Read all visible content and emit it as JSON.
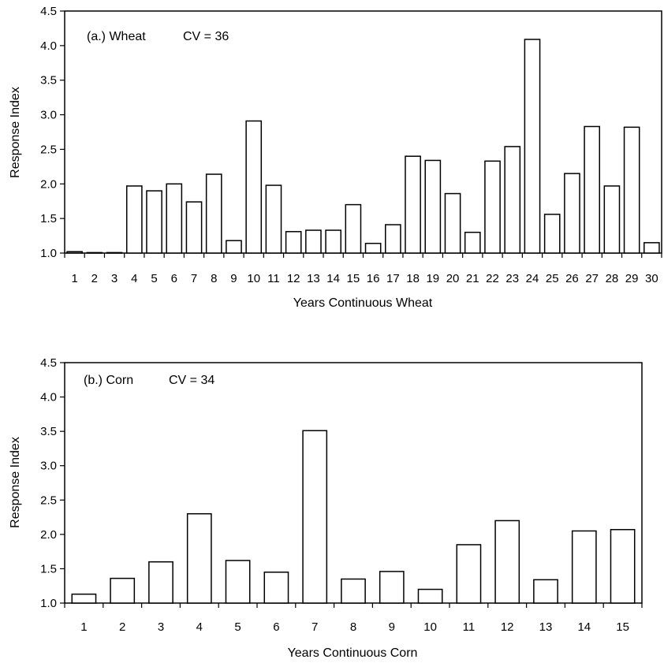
{
  "chart_data": [
    {
      "type": "bar",
      "panel_label": "(a.) Wheat",
      "cv_label": "CV = 36",
      "xlabel": "Years Continuous Wheat",
      "ylabel": "Response Index",
      "ylim": [
        1.0,
        4.5
      ],
      "yticks": [
        "1.0",
        "1.5",
        "2.0",
        "2.5",
        "3.0",
        "3.5",
        "4.0",
        "4.5"
      ],
      "grid": false,
      "categories": [
        "1",
        "2",
        "3",
        "4",
        "5",
        "6",
        "7",
        "8",
        "9",
        "10",
        "11",
        "12",
        "13",
        "14",
        "15",
        "16",
        "17",
        "18",
        "19",
        "20",
        "21",
        "22",
        "23",
        "24",
        "25",
        "26",
        "27",
        "28",
        "29",
        "30"
      ],
      "values": [
        1.02,
        1.0,
        1.0,
        1.97,
        1.9,
        2.0,
        1.74,
        2.14,
        1.18,
        2.91,
        1.98,
        1.31,
        1.33,
        1.33,
        1.7,
        1.14,
        1.41,
        2.4,
        2.34,
        1.86,
        1.3,
        2.33,
        2.54,
        4.09,
        1.56,
        2.15,
        2.83,
        1.97,
        2.82,
        1.15
      ]
    },
    {
      "type": "bar",
      "panel_label": "(b.) Corn",
      "cv_label": "CV = 34",
      "xlabel": "Years Continuous Corn",
      "ylabel": "Response Index",
      "ylim": [
        1.0,
        4.5
      ],
      "yticks": [
        "1.0",
        "1.5",
        "2.0",
        "2.5",
        "3.0",
        "3.5",
        "4.0",
        "4.5"
      ],
      "grid": false,
      "categories": [
        "1",
        "2",
        "3",
        "4",
        "5",
        "6",
        "7",
        "8",
        "9",
        "10",
        "11",
        "12",
        "13",
        "14",
        "15"
      ],
      "values": [
        1.13,
        1.36,
        1.6,
        2.3,
        1.62,
        1.45,
        3.51,
        1.35,
        1.46,
        1.2,
        1.85,
        2.2,
        1.34,
        2.05,
        2.07
      ]
    }
  ]
}
